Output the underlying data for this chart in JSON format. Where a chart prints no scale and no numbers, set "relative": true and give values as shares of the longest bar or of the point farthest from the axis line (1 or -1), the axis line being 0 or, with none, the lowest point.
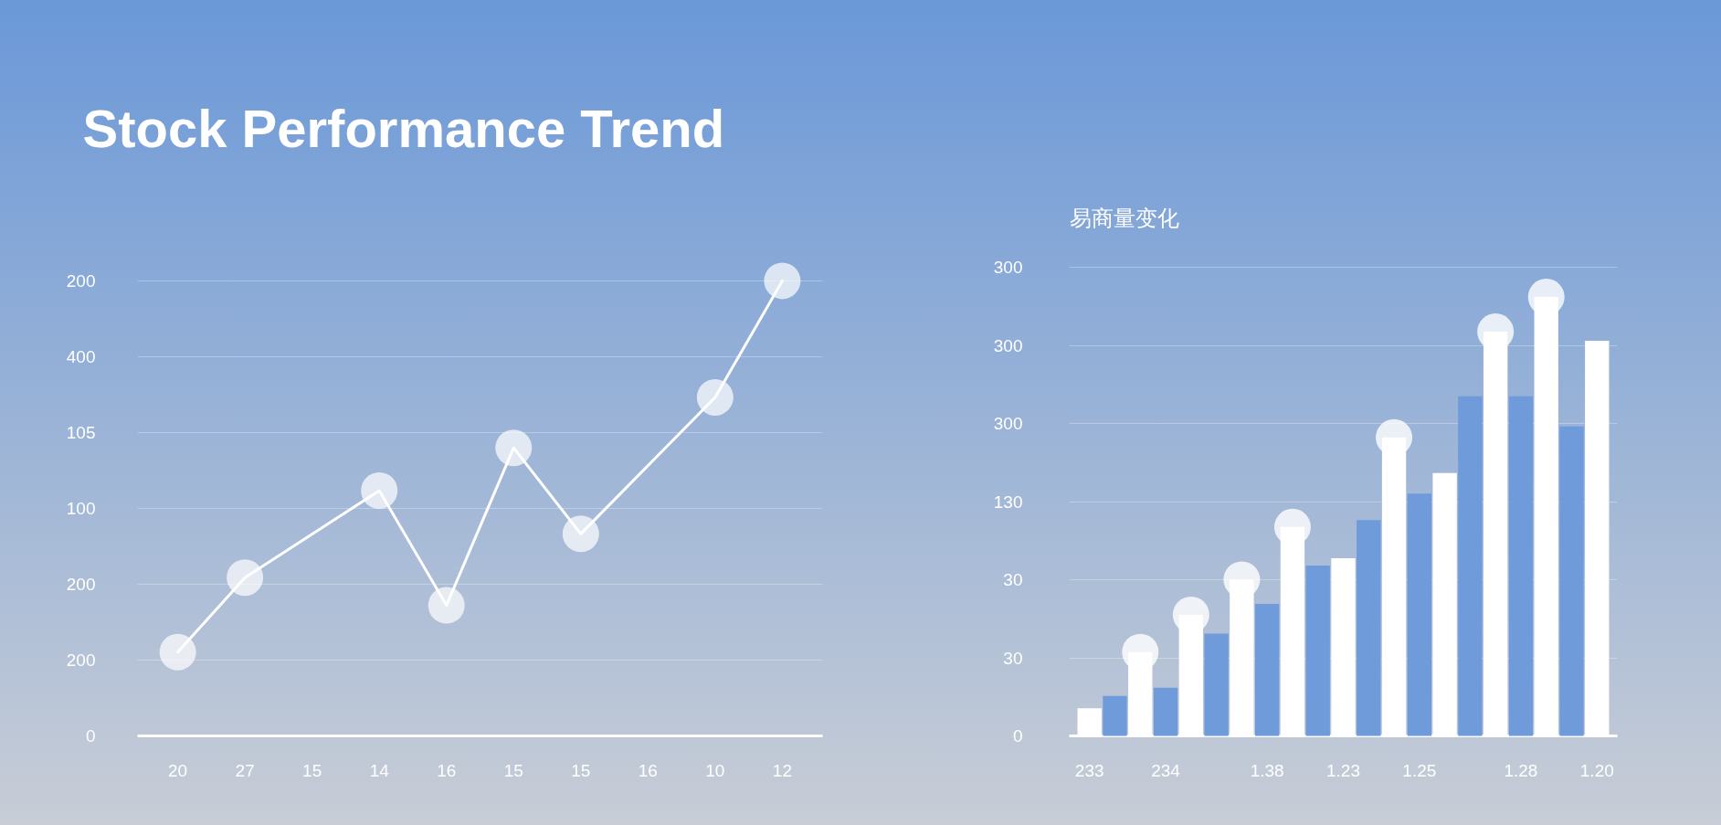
{
  "chart_data": [
    {
      "type": "line",
      "title": "Stock Performance Trend",
      "relative": true,
      "categories": [
        "20",
        "27",
        "15",
        "14",
        "16",
        "15",
        "15",
        "16",
        "10",
        "12"
      ],
      "annotations": [
        "0",
        "200",
        "200",
        "100",
        "105",
        "400",
        "200"
      ],
      "grid": "y",
      "marker": "circle",
      "line_style": "solid",
      "series": [
        {
          "color": "#ffffff",
          "values": [
            0.184,
            0.348,
            null,
            0.539,
            0.287,
            0.633,
            0.444,
            null,
            0.744,
            1
          ]
        }
      ]
    },
    {
      "type": "bar",
      "title": "易商量变化",
      "relative": true,
      "categories": [
        "233",
        null,
        null,
        "234",
        null,
        null,
        null,
        "1.38",
        null,
        null,
        "1.23",
        null,
        null,
        "1.25",
        null,
        null,
        null,
        "1.28",
        null,
        null,
        "1.20"
      ],
      "annotations": [
        "0",
        "30",
        "30",
        "130",
        "300",
        "300",
        "300"
      ],
      "grid": "y",
      "series": [
        {
          "color": "#ffffff",
          "values": [
            0.063,
            null,
            0.191,
            null,
            0.276,
            null,
            0.356,
            null,
            0.476,
            null,
            0.405,
            null,
            0.68,
            null,
            0.599,
            null,
            0.921,
            null,
            1,
            null,
            0.9
          ]
        },
        {
          "color": "#6f9bdb",
          "values": [
            null,
            0.091,
            null,
            0.11,
            null,
            0.233,
            null,
            0.301,
            null,
            0.388,
            null,
            0.492,
            null,
            0.552,
            null,
            0.774,
            null,
            0.774,
            null,
            0.705,
            null
          ]
        },
        {
          "type": "scatter",
          "marker": "circle",
          "color": "#ffffff",
          "values": [
            null,
            null,
            0.191,
            null,
            0.276,
            null,
            0.356,
            null,
            0.476,
            null,
            null,
            null,
            0.68,
            null,
            null,
            null,
            0.921,
            null,
            1,
            null,
            null
          ]
        }
      ]
    }
  ]
}
